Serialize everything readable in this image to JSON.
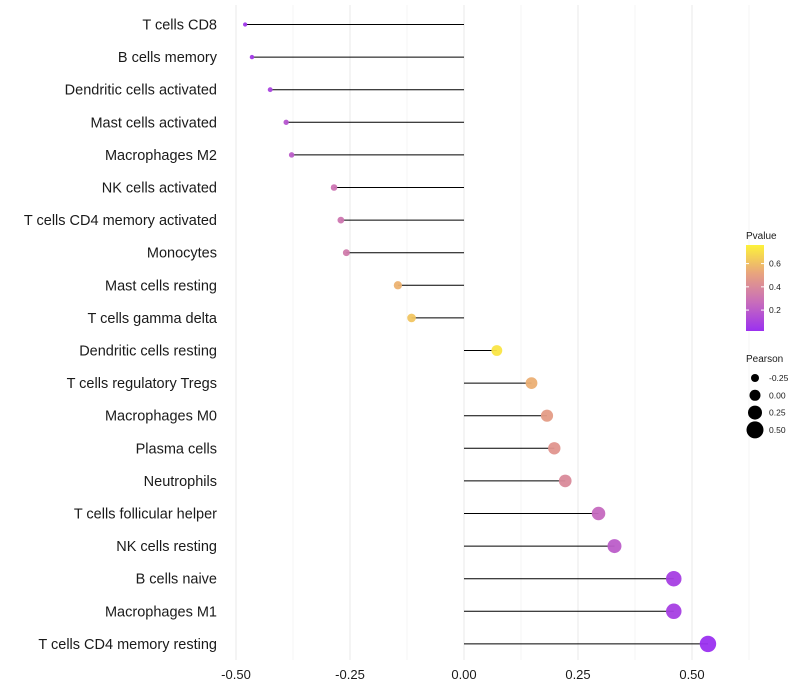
{
  "chart_data": {
    "type": "lollipop",
    "title": "",
    "xlabel": "",
    "ylabel": "",
    "xlim": [
      -0.52,
      0.56
    ],
    "x_ticks": [
      -0.5,
      -0.25,
      0.0,
      0.25,
      0.5
    ],
    "x_tick_labels": [
      "-0.50",
      "-0.25",
      "0.00",
      "0.25",
      "0.50"
    ],
    "grid": true,
    "items": [
      {
        "label": "T cells CD8",
        "pearson": -0.48,
        "pvalue": 0.05
      },
      {
        "label": "B cells memory",
        "pearson": -0.465,
        "pvalue": 0.06
      },
      {
        "label": "Dendritic cells activated",
        "pearson": -0.425,
        "pvalue": 0.1
      },
      {
        "label": "Mast cells activated",
        "pearson": -0.39,
        "pvalue": 0.17
      },
      {
        "label": "Macrophages M2",
        "pearson": -0.378,
        "pvalue": 0.2
      },
      {
        "label": "NK cells activated",
        "pearson": -0.285,
        "pvalue": 0.3
      },
      {
        "label": "T cells CD4 memory activated",
        "pearson": -0.27,
        "pvalue": 0.31
      },
      {
        "label": "Monocytes",
        "pearson": -0.258,
        "pvalue": 0.33
      },
      {
        "label": "Mast cells resting",
        "pearson": -0.145,
        "pvalue": 0.56
      },
      {
        "label": "T cells gamma delta",
        "pearson": -0.115,
        "pvalue": 0.62
      },
      {
        "label": "Dendritic cells resting",
        "pearson": 0.072,
        "pvalue": 0.72
      },
      {
        "label": "T cells regulatory  Tregs ",
        "pearson": 0.148,
        "pvalue": 0.55
      },
      {
        "label": "Macrophages M0",
        "pearson": 0.182,
        "pvalue": 0.48
      },
      {
        "label": "Plasma cells",
        "pearson": 0.198,
        "pvalue": 0.45
      },
      {
        "label": "Neutrophils",
        "pearson": 0.222,
        "pvalue": 0.4
      },
      {
        "label": "T cells follicular helper",
        "pearson": 0.295,
        "pvalue": 0.25
      },
      {
        "label": "NK cells resting",
        "pearson": 0.33,
        "pvalue": 0.2
      },
      {
        "label": "B cells naive",
        "pearson": 0.46,
        "pvalue": 0.08
      },
      {
        "label": "Macrophages M1",
        "pearson": 0.46,
        "pvalue": 0.08
      },
      {
        "label": "T cells CD4 memory resting",
        "pearson": 0.535,
        "pvalue": 0.02
      }
    ],
    "legend_pvalue": {
      "title": "Pvalue",
      "range": [
        0.02,
        0.76
      ],
      "ticks": [
        0.2,
        0.4,
        0.6
      ],
      "tick_labels": [
        "0.2",
        "0.4",
        "0.6"
      ],
      "colors": [
        "#9b30f0",
        "#c86dbb",
        "#e8a37e",
        "#fdf23a"
      ]
    },
    "legend_pearson": {
      "title": "Pearson",
      "values": [
        -0.25,
        0.0,
        0.25,
        0.5
      ],
      "labels": [
        "-0.25",
        "0.00",
        "0.25",
        "0.50"
      ],
      "color": "#000000"
    },
    "stem_color": "#000000",
    "grid_color": "#ebebeb"
  }
}
